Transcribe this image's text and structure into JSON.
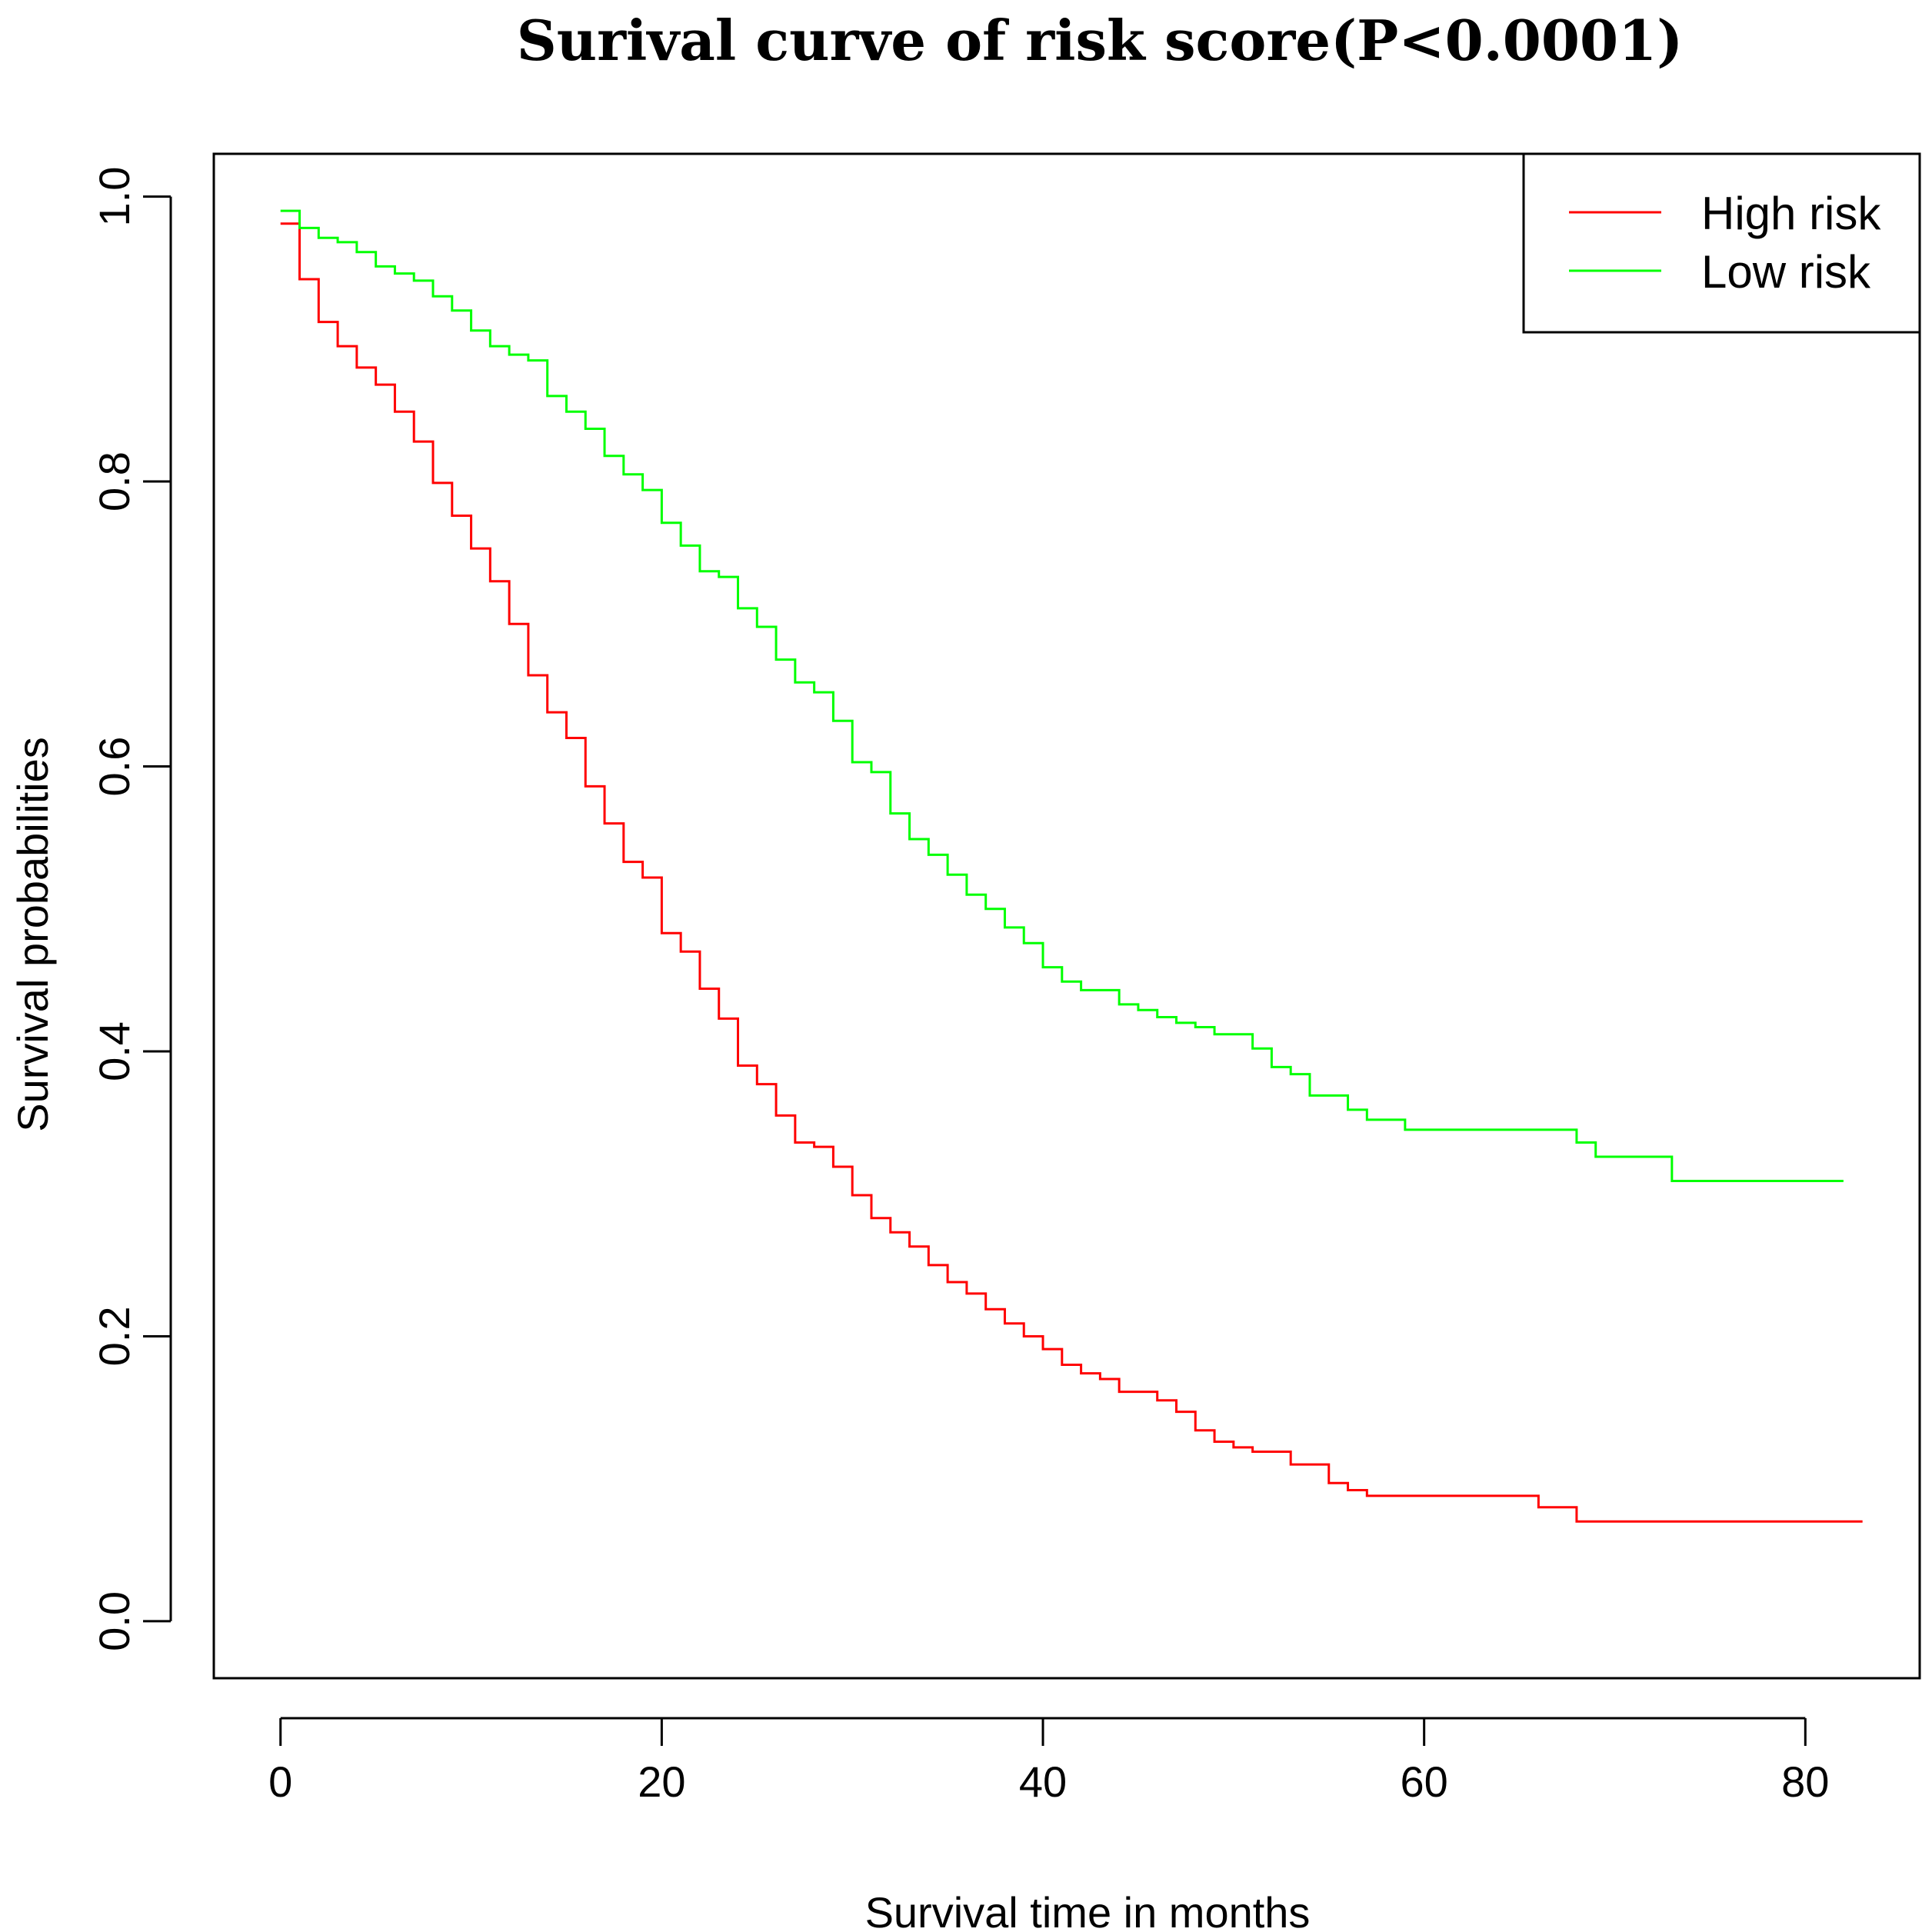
{
  "chart_data": {
    "type": "line",
    "subtype": "step",
    "title": "Surival curve of risk score(P<0.0001)",
    "xlabel": "Survival time in months",
    "ylabel": "Survival probabilities",
    "xlim": [
      -3.5,
      86
    ],
    "ylim": [
      -0.04,
      1.03
    ],
    "x_ticks": [
      0,
      20,
      40,
      60,
      80
    ],
    "x_tick_labels": [
      "0",
      "20",
      "40",
      "60",
      "80"
    ],
    "y_ticks": [
      0.0,
      0.2,
      0.4,
      0.6,
      0.8,
      1.0
    ],
    "y_tick_labels": [
      "0.0",
      "0.2",
      "0.4",
      "0.6",
      "0.8",
      "1.0"
    ],
    "grid": false,
    "legend": {
      "position": "top-right",
      "entries": [
        {
          "label": "High risk",
          "color": "#ff0000"
        },
        {
          "label": "Low risk",
          "color": "#00ff00"
        }
      ]
    },
    "series": [
      {
        "name": "High risk",
        "color": "#ff0000",
        "end_x": 83,
        "steps": [
          [
            0,
            0.981
          ],
          [
            1,
            0.942
          ],
          [
            2,
            0.912
          ],
          [
            3,
            0.895
          ],
          [
            4,
            0.88
          ],
          [
            5,
            0.868
          ],
          [
            6,
            0.849
          ],
          [
            7,
            0.828
          ],
          [
            8,
            0.799
          ],
          [
            9,
            0.776
          ],
          [
            10,
            0.753
          ],
          [
            11,
            0.73
          ],
          [
            12,
            0.7
          ],
          [
            13,
            0.664
          ],
          [
            14,
            0.638
          ],
          [
            15,
            0.62
          ],
          [
            16,
            0.586
          ],
          [
            17,
            0.56
          ],
          [
            18,
            0.533
          ],
          [
            19,
            0.522
          ],
          [
            20,
            0.483
          ],
          [
            21,
            0.47
          ],
          [
            22,
            0.444
          ],
          [
            23,
            0.423
          ],
          [
            24,
            0.39
          ],
          [
            25,
            0.377
          ],
          [
            26,
            0.355
          ],
          [
            27,
            0.336
          ],
          [
            28,
            0.333
          ],
          [
            29,
            0.319
          ],
          [
            30,
            0.299
          ],
          [
            31,
            0.283
          ],
          [
            32,
            0.273
          ],
          [
            33,
            0.263
          ],
          [
            34,
            0.25
          ],
          [
            35,
            0.238
          ],
          [
            36,
            0.23
          ],
          [
            37,
            0.219
          ],
          [
            38,
            0.209
          ],
          [
            39,
            0.2
          ],
          [
            40,
            0.191
          ],
          [
            41,
            0.18
          ],
          [
            42,
            0.174
          ],
          [
            43,
            0.17
          ],
          [
            44,
            0.161
          ],
          [
            46,
            0.155
          ],
          [
            47,
            0.147
          ],
          [
            48,
            0.134
          ],
          [
            49,
            0.126
          ],
          [
            50,
            0.122
          ],
          [
            51,
            0.119
          ],
          [
            53,
            0.11
          ],
          [
            55,
            0.097
          ],
          [
            56,
            0.092
          ],
          [
            57,
            0.088
          ],
          [
            66,
            0.08
          ],
          [
            68,
            0.07
          ]
        ]
      },
      {
        "name": "Low risk",
        "color": "#00ff00",
        "end_x": 82,
        "steps": [
          [
            0,
            0.99
          ],
          [
            1,
            0.978
          ],
          [
            2,
            0.971
          ],
          [
            3,
            0.968
          ],
          [
            4,
            0.961
          ],
          [
            5,
            0.951
          ],
          [
            6,
            0.946
          ],
          [
            7,
            0.941
          ],
          [
            8,
            0.93
          ],
          [
            9,
            0.92
          ],
          [
            10,
            0.906
          ],
          [
            11,
            0.895
          ],
          [
            12,
            0.889
          ],
          [
            13,
            0.885
          ],
          [
            14,
            0.86
          ],
          [
            15,
            0.849
          ],
          [
            16,
            0.837
          ],
          [
            17,
            0.818
          ],
          [
            18,
            0.805
          ],
          [
            19,
            0.794
          ],
          [
            20,
            0.771
          ],
          [
            21,
            0.755
          ],
          [
            22,
            0.737
          ],
          [
            23,
            0.733
          ],
          [
            24,
            0.711
          ],
          [
            25,
            0.698
          ],
          [
            26,
            0.675
          ],
          [
            27,
            0.659
          ],
          [
            28,
            0.652
          ],
          [
            29,
            0.632
          ],
          [
            30,
            0.603
          ],
          [
            31,
            0.596
          ],
          [
            32,
            0.567
          ],
          [
            33,
            0.549
          ],
          [
            34,
            0.538
          ],
          [
            35,
            0.524
          ],
          [
            36,
            0.51
          ],
          [
            37,
            0.5
          ],
          [
            38,
            0.487
          ],
          [
            39,
            0.476
          ],
          [
            40,
            0.459
          ],
          [
            41,
            0.449
          ],
          [
            42,
            0.443
          ],
          [
            44,
            0.433
          ],
          [
            45,
            0.429
          ],
          [
            46,
            0.424
          ],
          [
            47,
            0.42
          ],
          [
            48,
            0.417
          ],
          [
            49,
            0.412
          ],
          [
            51,
            0.402
          ],
          [
            52,
            0.389
          ],
          [
            53,
            0.384
          ],
          [
            54,
            0.369
          ],
          [
            56,
            0.359
          ],
          [
            57,
            0.352
          ],
          [
            59,
            0.345
          ],
          [
            68,
            0.336
          ],
          [
            69,
            0.326
          ],
          [
            73,
            0.309
          ]
        ]
      }
    ]
  }
}
